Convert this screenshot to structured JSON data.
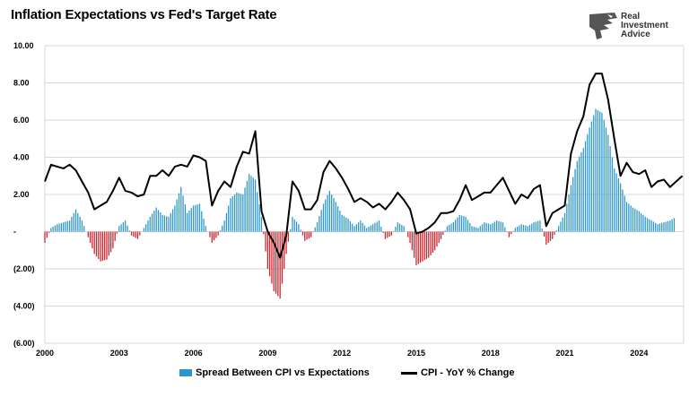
{
  "title": "Inflation Expectations vs Fed's Target Rate",
  "logo": {
    "line1": "Real",
    "line2": "Investment",
    "line3": "Advice"
  },
  "colors": {
    "spread_positive": "#2b96c9",
    "spread_negative": "#d0202a",
    "cpi_line": "#000000",
    "grid": "#d9d9d9"
  },
  "chart_data": {
    "type": "bar+line",
    "title": "Inflation Expectations vs Fed's Target Rate",
    "xlabel": "",
    "ylabel": "",
    "xlim": [
      2000,
      2025.8
    ],
    "ylim": [
      -6,
      10
    ],
    "y_ticks": [
      {
        "v": 10,
        "label": "10.00"
      },
      {
        "v": 8,
        "label": "8.00"
      },
      {
        "v": 6,
        "label": "6.00"
      },
      {
        "v": 4,
        "label": "4.00"
      },
      {
        "v": 2,
        "label": "2.00"
      },
      {
        "v": 0,
        "label": "-"
      },
      {
        "v": -2,
        "label": "(2.00)"
      },
      {
        "v": -4,
        "label": "(4.00)"
      },
      {
        "v": -6,
        "label": "(6.00)"
      }
    ],
    "x_ticks": [
      {
        "v": 2000,
        "label": "2000"
      },
      {
        "v": 2003,
        "label": "2003"
      },
      {
        "v": 2006,
        "label": "2006"
      },
      {
        "v": 2009,
        "label": "2009"
      },
      {
        "v": 2012,
        "label": "2012"
      },
      {
        "v": 2015,
        "label": "2015"
      },
      {
        "v": 2018,
        "label": "2018"
      },
      {
        "v": 2021,
        "label": "2021"
      },
      {
        "v": 2024,
        "label": "2024"
      }
    ],
    "grid": true,
    "legend_position": "bottom",
    "series": [
      {
        "name": "Spread Between CPI vs Expectations",
        "kind": "bar",
        "x": [
          2000.0,
          2000.25,
          2000.5,
          2000.75,
          2001.0,
          2001.25,
          2001.5,
          2001.75,
          2002.0,
          2002.25,
          2002.5,
          2002.75,
          2003.0,
          2003.25,
          2003.5,
          2003.75,
          2004.0,
          2004.25,
          2004.5,
          2004.75,
          2005.0,
          2005.25,
          2005.5,
          2005.75,
          2006.0,
          2006.25,
          2006.5,
          2006.75,
          2007.0,
          2007.25,
          2007.5,
          2007.75,
          2008.0,
          2008.25,
          2008.5,
          2008.75,
          2009.0,
          2009.25,
          2009.5,
          2009.75,
          2010.0,
          2010.25,
          2010.5,
          2010.75,
          2011.0,
          2011.25,
          2011.5,
          2011.75,
          2012.0,
          2012.25,
          2012.5,
          2012.75,
          2013.0,
          2013.25,
          2013.5,
          2013.75,
          2014.0,
          2014.25,
          2014.5,
          2014.75,
          2015.0,
          2015.25,
          2015.5,
          2015.75,
          2016.0,
          2016.25,
          2016.5,
          2016.75,
          2017.0,
          2017.25,
          2017.5,
          2017.75,
          2018.0,
          2018.25,
          2018.5,
          2018.75,
          2019.0,
          2019.25,
          2019.5,
          2019.75,
          2020.0,
          2020.25,
          2020.5,
          2020.75,
          2021.0,
          2021.25,
          2021.5,
          2021.75,
          2022.0,
          2022.25,
          2022.5,
          2022.75,
          2023.0,
          2023.25,
          2023.5,
          2023.75,
          2024.0,
          2024.25,
          2024.5,
          2024.75,
          2025.0,
          2025.25,
          2025.5
        ],
        "values": [
          -0.6,
          0.2,
          0.4,
          0.5,
          0.6,
          1.2,
          0.6,
          -0.3,
          -1.2,
          -1.6,
          -1.5,
          -0.9,
          0.3,
          0.6,
          -0.2,
          -0.4,
          0.2,
          0.8,
          1.3,
          0.9,
          0.8,
          1.4,
          2.4,
          1.0,
          1.4,
          1.5,
          0.3,
          -0.6,
          -0.2,
          0.6,
          1.8,
          2.1,
          2.0,
          3.1,
          2.8,
          0.8,
          -2.0,
          -3.2,
          -3.6,
          -1.2,
          0.8,
          0.4,
          -0.5,
          -0.3,
          0.5,
          1.5,
          2.2,
          1.6,
          0.9,
          0.7,
          0.3,
          0.6,
          0.2,
          0.4,
          0.6,
          -0.4,
          -0.2,
          0.5,
          0.3,
          -0.6,
          -1.8,
          -1.6,
          -1.4,
          -1.0,
          -0.4,
          0.3,
          0.5,
          0.9,
          0.8,
          0.3,
          0.2,
          0.5,
          0.4,
          0.6,
          0.5,
          -0.3,
          0.2,
          0.4,
          0.3,
          0.5,
          0.6,
          -0.7,
          -0.4,
          0.3,
          1.0,
          2.5,
          3.8,
          4.5,
          5.6,
          6.6,
          6.4,
          5.2,
          3.4,
          2.6,
          1.6,
          1.3,
          1.1,
          0.8,
          0.6,
          0.4,
          0.5,
          0.6,
          0.8
        ]
      },
      {
        "name": "CPI - YoY % Change",
        "kind": "line",
        "x": [
          2000.0,
          2000.25,
          2000.5,
          2000.75,
          2001.0,
          2001.25,
          2001.5,
          2001.75,
          2002.0,
          2002.25,
          2002.5,
          2002.75,
          2003.0,
          2003.25,
          2003.5,
          2003.75,
          2004.0,
          2004.25,
          2004.5,
          2004.75,
          2005.0,
          2005.25,
          2005.5,
          2005.75,
          2006.0,
          2006.25,
          2006.5,
          2006.75,
          2007.0,
          2007.25,
          2007.5,
          2007.75,
          2008.0,
          2008.25,
          2008.5,
          2008.75,
          2009.0,
          2009.25,
          2009.5,
          2009.75,
          2010.0,
          2010.25,
          2010.5,
          2010.75,
          2011.0,
          2011.25,
          2011.5,
          2011.75,
          2012.0,
          2012.25,
          2012.5,
          2012.75,
          2013.0,
          2013.25,
          2013.5,
          2013.75,
          2014.0,
          2014.25,
          2014.5,
          2014.75,
          2015.0,
          2015.25,
          2015.5,
          2015.75,
          2016.0,
          2016.25,
          2016.5,
          2016.75,
          2017.0,
          2017.25,
          2017.5,
          2017.75,
          2018.0,
          2018.25,
          2018.5,
          2018.75,
          2019.0,
          2019.25,
          2019.5,
          2019.75,
          2020.0,
          2020.25,
          2020.5,
          2020.75,
          2021.0,
          2021.25,
          2021.5,
          2021.75,
          2022.0,
          2022.25,
          2022.5,
          2022.75,
          2023.0,
          2023.25,
          2023.5,
          2023.75,
          2024.0,
          2024.25,
          2024.5,
          2024.75,
          2025.0,
          2025.25,
          2025.5,
          2025.75
        ],
        "values": [
          2.7,
          3.6,
          3.5,
          3.4,
          3.6,
          3.3,
          2.7,
          2.1,
          1.2,
          1.4,
          1.6,
          2.2,
          2.9,
          2.2,
          2.1,
          1.9,
          2.0,
          3.0,
          3.0,
          3.3,
          3.0,
          3.5,
          3.6,
          3.5,
          4.1,
          4.0,
          3.8,
          1.4,
          2.2,
          2.7,
          2.4,
          3.5,
          4.3,
          4.2,
          5.4,
          1.1,
          0.0,
          -0.6,
          -1.4,
          -0.2,
          2.7,
          2.2,
          1.2,
          1.2,
          1.7,
          3.2,
          3.8,
          3.4,
          2.9,
          2.3,
          1.6,
          1.8,
          1.6,
          1.3,
          1.5,
          1.2,
          1.6,
          2.1,
          1.7,
          1.2,
          -0.1,
          0.0,
          0.2,
          0.5,
          1.0,
          1.0,
          1.1,
          1.7,
          2.5,
          1.7,
          1.9,
          2.1,
          2.1,
          2.5,
          2.9,
          2.2,
          1.5,
          2.0,
          1.8,
          2.3,
          2.5,
          0.3,
          1.0,
          1.2,
          1.4,
          4.2,
          5.4,
          6.2,
          7.9,
          8.5,
          8.5,
          7.1,
          5.0,
          3.0,
          3.7,
          3.2,
          3.1,
          3.3,
          2.4,
          2.7,
          2.8,
          2.4,
          2.7,
          3.0
        ]
      }
    ]
  }
}
